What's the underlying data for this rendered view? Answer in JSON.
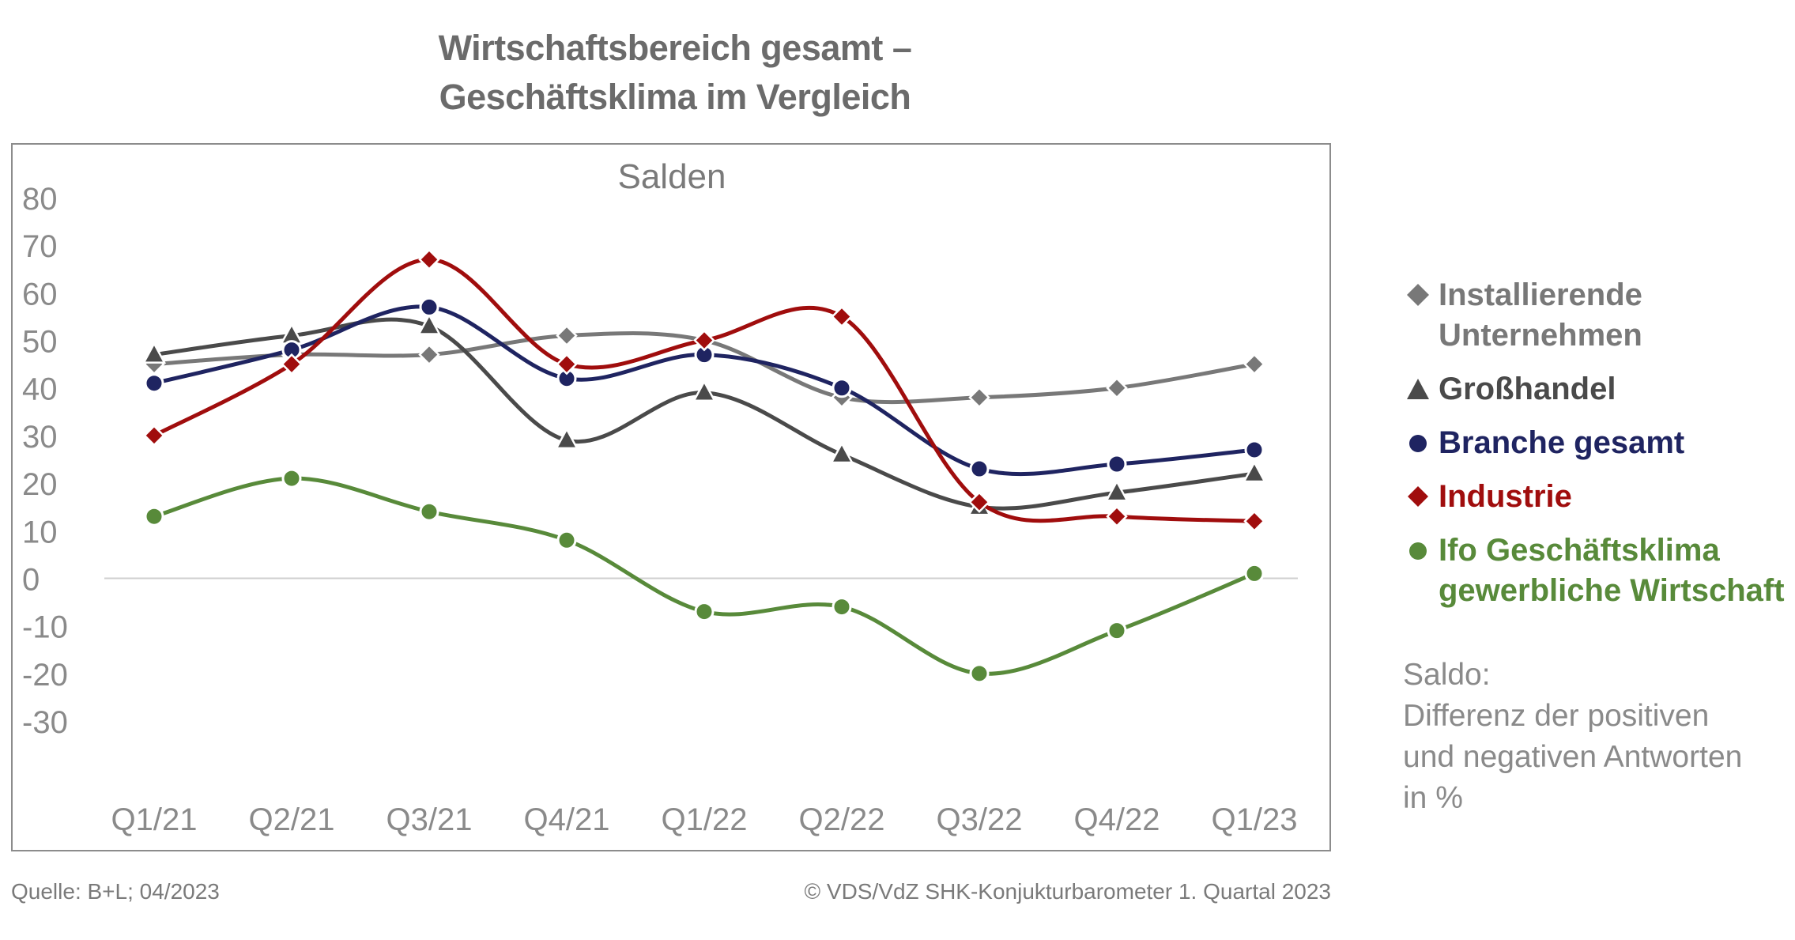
{
  "title_line1": "Wirtschaftsbereich gesamt –",
  "title_line2": "Geschäftsklima im Vergleich",
  "chart_data": {
    "type": "line",
    "title": "Salden",
    "categories": [
      "Q1/21",
      "Q2/21",
      "Q3/21",
      "Q4/21",
      "Q1/22",
      "Q2/22",
      "Q3/22",
      "Q4/22",
      "Q1/23"
    ],
    "ylim": [
      -30,
      80
    ],
    "yticks": [
      80,
      70,
      60,
      50,
      40,
      30,
      20,
      10,
      0,
      -10,
      -20,
      -30
    ],
    "grid": false,
    "zero_line": true,
    "smooth": true,
    "legend_position": "right",
    "series": [
      {
        "name": "Installierende Unternehmen",
        "values": [
          45,
          47,
          47,
          51,
          50,
          38,
          38,
          40,
          45
        ],
        "color": "#787878",
        "marker": "diamond"
      },
      {
        "name": "Großhandel",
        "values": [
          47,
          51,
          53,
          29,
          39,
          26,
          15,
          18,
          22
        ],
        "color": "#4a4a4a",
        "marker": "triangle"
      },
      {
        "name": "Branche gesamt",
        "values": [
          41,
          48,
          57,
          42,
          47,
          40,
          23,
          24,
          27
        ],
        "color": "#1f2461",
        "marker": "circle"
      },
      {
        "name": "Industrie",
        "values": [
          30,
          45,
          67,
          45,
          50,
          55,
          16,
          13,
          12
        ],
        "color": "#a00d0d",
        "marker": "diamond"
      },
      {
        "name": "Ifo Geschäftsklima gewerbliche Wirtschaft",
        "values": [
          13,
          21,
          14,
          8,
          -7,
          -6,
          -20,
          -11,
          1
        ],
        "color": "#588a3a",
        "marker": "circle"
      }
    ]
  },
  "legend": [
    {
      "line1": "Installierende",
      "line2": "Unternehmen"
    },
    {
      "line1": "Großhandel",
      "line2": ""
    },
    {
      "line1": "Branche gesamt",
      "line2": ""
    },
    {
      "line1": "Industrie",
      "line2": ""
    },
    {
      "line1": "Ifo Geschäftsklima",
      "line2": "gewerbliche Wirtschaft"
    }
  ],
  "note": {
    "line1": "Saldo:",
    "line2": "Differenz der positiven",
    "line3": "und negativen Antworten",
    "line4": "in %"
  },
  "source": "Quelle: B+L; 04/2023",
  "copyright": "© VDS/VdZ SHK-Konjukturbarometer 1. Quartal 2023"
}
